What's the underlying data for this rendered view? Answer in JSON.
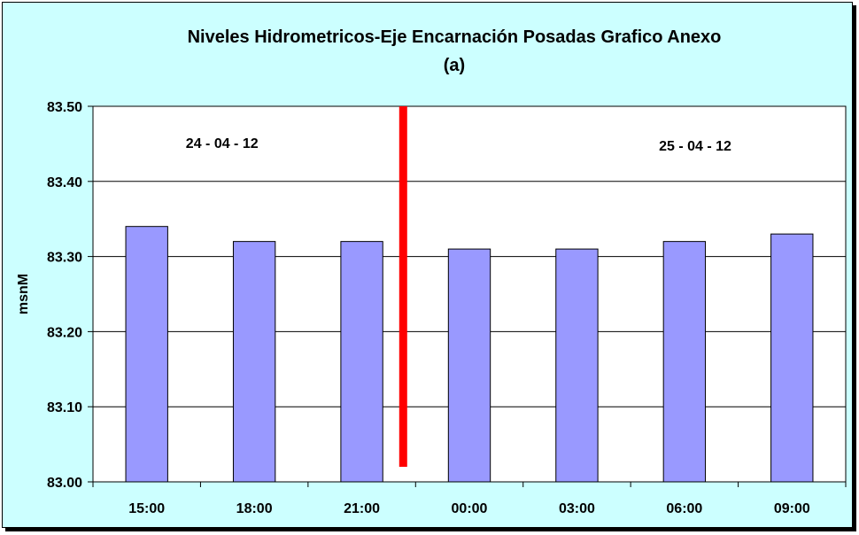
{
  "chart_data": {
    "type": "bar",
    "title": "Niveles Hidrometricos-Eje Encarnación Posadas Grafico Anexo",
    "subtitle": "(a)",
    "ylabel": "msnM",
    "xlabel": "",
    "categories": [
      "15:00",
      "18:00",
      "21:00",
      "00:00",
      "03:00",
      "06:00",
      "09:00"
    ],
    "values": [
      83.34,
      83.32,
      83.32,
      83.31,
      83.31,
      83.32,
      83.33
    ],
    "ylim": [
      83.0,
      83.5
    ],
    "yticks": [
      83.0,
      83.1,
      83.2,
      83.3,
      83.4,
      83.5
    ],
    "ytick_labels": [
      "83.00",
      "83.10",
      "83.20",
      "83.30",
      "83.40",
      "83.50"
    ],
    "grid": "horizontal",
    "legend": "none",
    "annotations": [
      {
        "text": "24 - 04 - 12"
      },
      {
        "text": "25 - 04 - 12"
      }
    ],
    "day_divider": {
      "after_category_index": 2,
      "from": 83.02,
      "to": 83.5
    },
    "colors": {
      "background": "#ccffff",
      "plot_area": "#ffffff",
      "bar": "#9999ff",
      "divider": "#ff0000",
      "grid": "#000000"
    }
  }
}
